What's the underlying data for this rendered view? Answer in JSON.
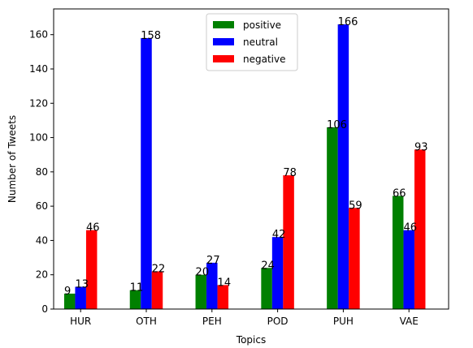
{
  "chart_data": {
    "type": "bar",
    "title": "",
    "xlabel": "Topics",
    "ylabel": "Number of Tweets",
    "categories": [
      "HUR",
      "OTH",
      "PEH",
      "POD",
      "PUH",
      "VAE"
    ],
    "series": [
      {
        "name": "positive",
        "color": "#008000",
        "values": [
          9,
          11,
          20,
          24,
          106,
          66
        ]
      },
      {
        "name": "neutral",
        "color": "#0000ff",
        "values": [
          13,
          158,
          27,
          42,
          166,
          46
        ]
      },
      {
        "name": "negative",
        "color": "#ff0000",
        "values": [
          46,
          22,
          14,
          78,
          59,
          93
        ]
      }
    ],
    "ylim": [
      0,
      175
    ],
    "yticks": [
      0,
      20,
      40,
      60,
      80,
      100,
      120,
      140,
      160
    ],
    "grid": false,
    "legend_position": "top-center"
  }
}
